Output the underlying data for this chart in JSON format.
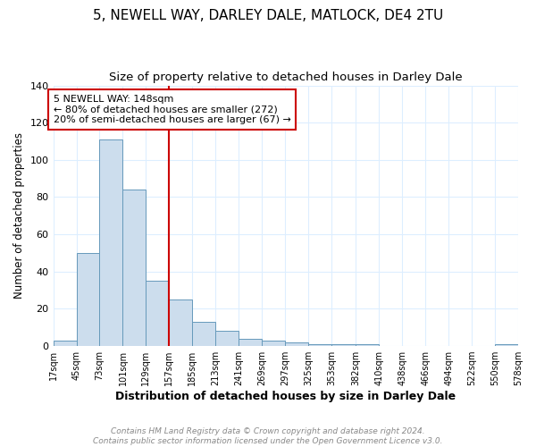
{
  "title": "5, NEWELL WAY, DARLEY DALE, MATLOCK, DE4 2TU",
  "subtitle": "Size of property relative to detached houses in Darley Dale",
  "xlabel": "Distribution of detached houses by size in Darley Dale",
  "ylabel": "Number of detached properties",
  "annotation_line1": "5 NEWELL WAY: 148sqm",
  "annotation_line2": "← 80% of detached houses are smaller (272)",
  "annotation_line3": "20% of semi-detached houses are larger (67) →",
  "property_size": 148,
  "vline_x": 157,
  "bar_color": "#ccdded",
  "bar_edgecolor": "#6699bb",
  "vline_color": "#cc0000",
  "annotation_box_edgecolor": "#cc0000",
  "grid_color": "#ddeeff",
  "bin_edges": [
    17,
    45,
    73,
    101,
    129,
    157,
    185,
    213,
    241,
    269,
    297,
    325,
    353,
    382,
    410,
    438,
    466,
    494,
    522,
    550,
    578
  ],
  "bin_counts": [
    3,
    50,
    111,
    84,
    35,
    25,
    13,
    8,
    4,
    3,
    2,
    1,
    1,
    1,
    0,
    0,
    0,
    0,
    0,
    1
  ],
  "ylim": [
    0,
    140
  ],
  "yticks": [
    0,
    20,
    40,
    60,
    80,
    100,
    120,
    140
  ],
  "footer_line1": "Contains HM Land Registry data © Crown copyright and database right 2024.",
  "footer_line2": "Contains public sector information licensed under the Open Government Licence v3.0.",
  "title_fontsize": 11,
  "subtitle_fontsize": 9.5,
  "xlabel_fontsize": 9,
  "ylabel_fontsize": 8.5,
  "annot_fontsize": 8,
  "footer_fontsize": 6.5,
  "tick_fontsize": 7,
  "ytick_fontsize": 8,
  "tick_labels": [
    "17sqm",
    "45sqm",
    "73sqm",
    "101sqm",
    "129sqm",
    "157sqm",
    "185sqm",
    "213sqm",
    "241sqm",
    "269sqm",
    "297sqm",
    "325sqm",
    "353sqm",
    "382sqm",
    "410sqm",
    "438sqm",
    "466sqm",
    "494sqm",
    "522sqm",
    "550sqm",
    "578sqm"
  ]
}
